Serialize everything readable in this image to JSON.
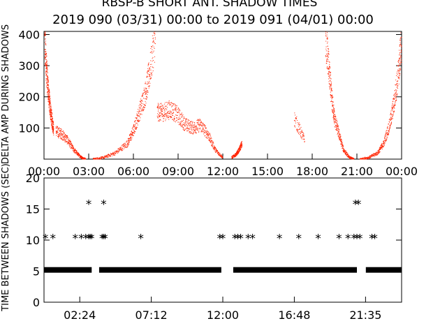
{
  "figure": {
    "title": "RBSP-B SHORT ANT. SHADOW TIMES",
    "subtitle": "2019 090 (03/31) 00:00 to 2019 091 (04/01) 00:00"
  },
  "chart_data": [
    {
      "type": "scatter",
      "ylabel": "DELTA AMP DURING SHADOWS",
      "xlim": [
        0,
        24
      ],
      "ylim": [
        0,
        410
      ],
      "yticks": [
        100,
        200,
        300,
        400
      ],
      "xtick_labels": [
        "00:00",
        "03:00",
        "06:00",
        "09:00",
        "12:00",
        "15:00",
        "18:00",
        "21:00",
        "00:00"
      ],
      "xtick_hours": [
        0,
        3,
        6,
        9,
        12,
        15,
        18,
        21,
        24
      ],
      "color": "#ff2200",
      "series": [
        {
          "x": [
            0.05,
            0.15,
            0.25,
            0.35,
            0.45,
            0.55,
            0.65
          ],
          "y": [
            380,
            300,
            240,
            190,
            150,
            120,
            95
          ]
        },
        {
          "x": [
            0.8,
            1.2,
            1.6,
            2.0,
            2.4,
            2.6,
            2.8
          ],
          "y": [
            90,
            80,
            60,
            30,
            10,
            3,
            0
          ]
        },
        {
          "x": [
            3.3,
            4.0,
            4.8,
            5.6,
            6.0,
            6.4,
            6.8,
            7.1,
            7.5
          ],
          "y": [
            0,
            5,
            20,
            50,
            90,
            150,
            210,
            280,
            400
          ]
        },
        {
          "x": [
            7.6,
            8.0,
            8.5,
            9.0,
            9.5,
            10.0,
            10.5,
            11.0,
            11.5,
            12.0
          ],
          "y": [
            150,
            150,
            160,
            140,
            110,
            100,
            110,
            80,
            30,
            5
          ]
        },
        {
          "x": [
            12.6,
            12.9,
            13.1,
            13.3
          ],
          "y": [
            5,
            15,
            30,
            50
          ]
        },
        {
          "x": [
            16.8,
            17.5
          ],
          "y": [
            130,
            60
          ]
        },
        {
          "x": [
            18.9,
            19.1,
            19.3,
            19.5,
            19.8,
            20.1,
            20.5,
            20.8
          ],
          "y": [
            400,
            300,
            200,
            130,
            80,
            30,
            5,
            0
          ]
        },
        {
          "x": [
            21.2,
            21.8,
            22.4,
            22.8,
            23.2,
            23.5,
            23.8,
            24.0
          ],
          "y": [
            0,
            5,
            20,
            50,
            110,
            180,
            280,
            380
          ]
        }
      ]
    },
    {
      "type": "scatter",
      "ylabel": "TIME BETWEEN SHADOWS (SEC)",
      "xlim": [
        0,
        24
      ],
      "ylim": [
        0,
        20
      ],
      "yticks": [
        0,
        5,
        10,
        15,
        20
      ],
      "xtick_labels": [
        "02:24",
        "07:12",
        "12:00",
        "16:48",
        "21:35"
      ],
      "xtick_hours": [
        2.4,
        7.2,
        12.0,
        16.8,
        21.58
      ],
      "marker": "*",
      "color": "#000000",
      "baseline": {
        "y": 5.2,
        "ranges": [
          [
            0,
            3.2
          ],
          [
            3.7,
            11.9
          ],
          [
            12.7,
            21.0
          ],
          [
            21.6,
            24
          ]
        ]
      },
      "points": [
        {
          "x": 0.1,
          "y": 10.5
        },
        {
          "x": 0.6,
          "y": 10.5
        },
        {
          "x": 2.1,
          "y": 10.5
        },
        {
          "x": 2.5,
          "y": 10.5
        },
        {
          "x": 2.8,
          "y": 10.5
        },
        {
          "x": 3.0,
          "y": 10.5
        },
        {
          "x": 3.1,
          "y": 10.5
        },
        {
          "x": 3.2,
          "y": 10.5
        },
        {
          "x": 3.0,
          "y": 16.0
        },
        {
          "x": 3.9,
          "y": 10.5
        },
        {
          "x": 4.0,
          "y": 10.5
        },
        {
          "x": 4.1,
          "y": 10.5
        },
        {
          "x": 4.0,
          "y": 16.0
        },
        {
          "x": 6.5,
          "y": 10.5
        },
        {
          "x": 11.8,
          "y": 10.5
        },
        {
          "x": 12.0,
          "y": 10.5
        },
        {
          "x": 12.8,
          "y": 10.5
        },
        {
          "x": 13.0,
          "y": 10.5
        },
        {
          "x": 13.2,
          "y": 10.5
        },
        {
          "x": 13.7,
          "y": 10.5
        },
        {
          "x": 14.0,
          "y": 10.5
        },
        {
          "x": 15.8,
          "y": 10.5
        },
        {
          "x": 17.1,
          "y": 10.5
        },
        {
          "x": 18.4,
          "y": 10.5
        },
        {
          "x": 19.8,
          "y": 10.5
        },
        {
          "x": 20.4,
          "y": 10.5
        },
        {
          "x": 20.8,
          "y": 10.5
        },
        {
          "x": 21.0,
          "y": 10.5
        },
        {
          "x": 21.2,
          "y": 10.5
        },
        {
          "x": 20.9,
          "y": 16.0
        },
        {
          "x": 21.1,
          "y": 16.0
        },
        {
          "x": 22.0,
          "y": 10.5
        },
        {
          "x": 22.2,
          "y": 10.5
        }
      ]
    }
  ]
}
